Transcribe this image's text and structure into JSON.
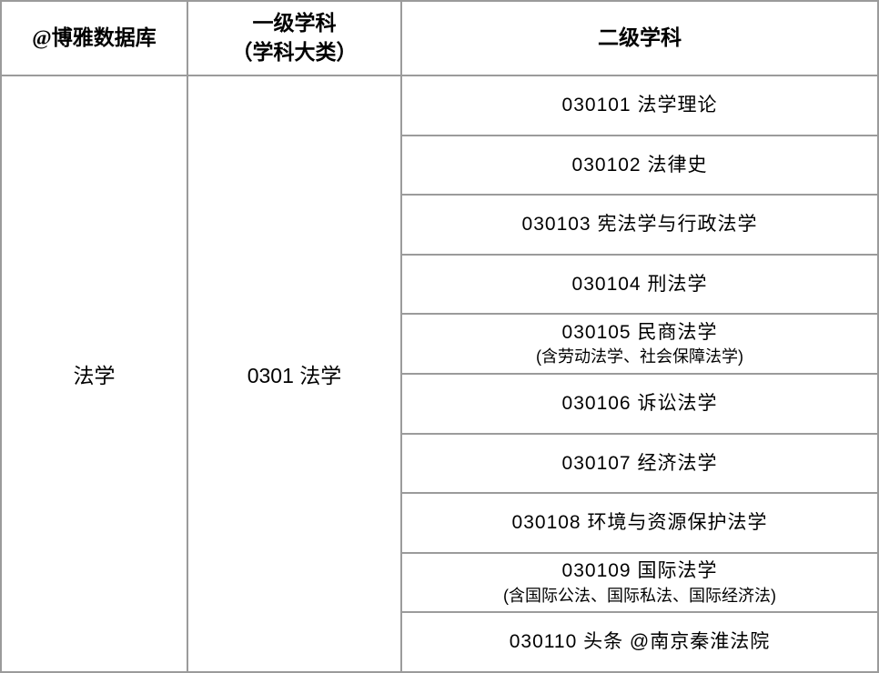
{
  "header": {
    "col1": "@博雅数据库",
    "col2_line1": "一级学科",
    "col2_line2": "（学科大类）",
    "col3": "二级学科"
  },
  "col1_value": "法学",
  "col2_value": "0301  法学",
  "subjects": [
    {
      "main": "030101   法学理论",
      "sub": ""
    },
    {
      "main": "030102   法律史",
      "sub": ""
    },
    {
      "main": "030103   宪法学与行政法学",
      "sub": ""
    },
    {
      "main": "030104   刑法学",
      "sub": ""
    },
    {
      "main": "030105   民商法学",
      "sub": "(含劳动法学、社会保障法学)"
    },
    {
      "main": "030106   诉讼法学",
      "sub": ""
    },
    {
      "main": "030107   经济法学",
      "sub": ""
    },
    {
      "main": "030108  环境与资源保护法学",
      "sub": ""
    },
    {
      "main": "030109  国际法学",
      "sub": "(含国际公法、国际私法、国际经济法)"
    },
    {
      "main": "030110  头条 @南京秦淮法院",
      "sub": ""
    }
  ],
  "watermark": "头条 @南京秦淮法院",
  "colors": {
    "border": "#9b9b9b",
    "text": "#000000",
    "background": "#ffffff",
    "watermark": "#6a6a6a"
  }
}
